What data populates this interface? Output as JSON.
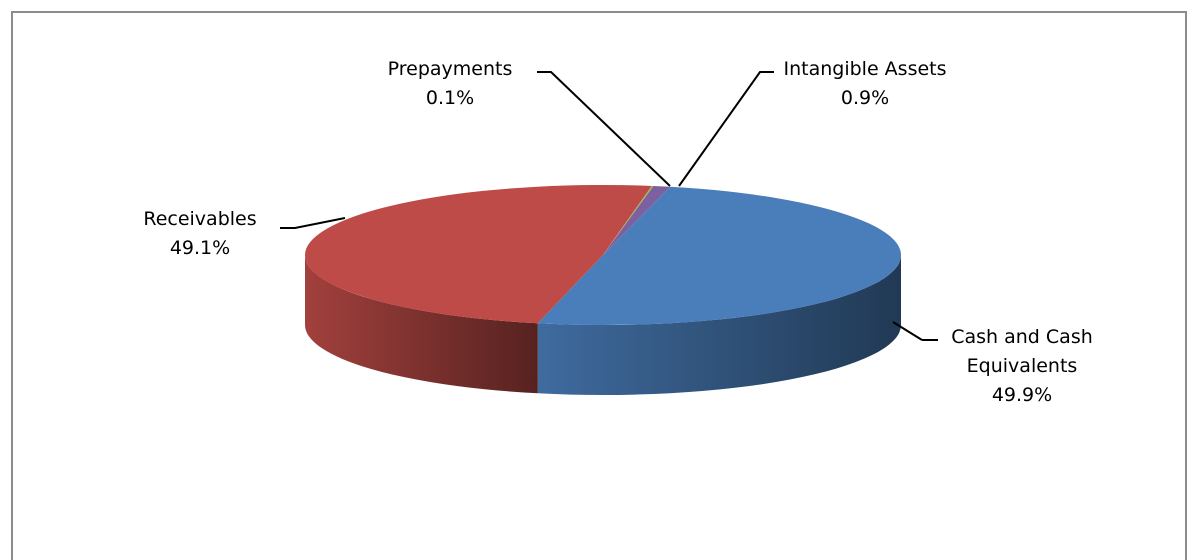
{
  "chart_data": {
    "type": "pie",
    "categories": [
      "Cash and Cash Equivalents",
      "Receivables",
      "Prepayments",
      "Intangible Assets"
    ],
    "values": [
      49.9,
      49.1,
      0.1,
      0.9
    ],
    "value_labels": [
      "49.9%",
      "49.1%",
      "0.1%",
      "0.9%"
    ],
    "colors": [
      "#4a7ebb",
      "#be4b48",
      "#98b954",
      "#7d60a0"
    ]
  }
}
